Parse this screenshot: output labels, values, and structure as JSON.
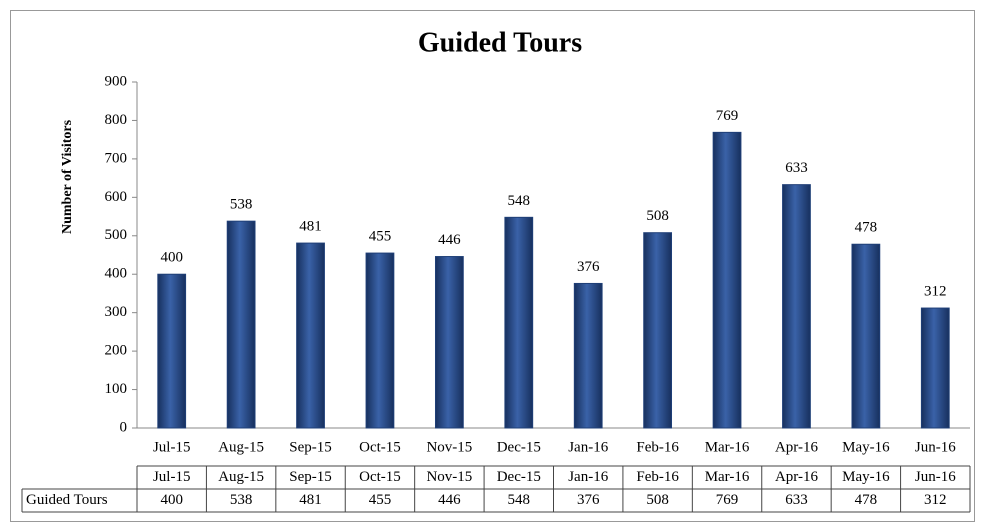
{
  "chart_data": {
    "type": "bar",
    "title": "Guided Tours",
    "y_label": "Number of Visitors",
    "series_name": "Guided Tours",
    "categories": [
      "Jul-15",
      "Aug-15",
      "Sep-15",
      "Oct-15",
      "Nov-15",
      "Dec-15",
      "Jan-16",
      "Feb-16",
      "Mar-16",
      "Apr-16",
      "May-16",
      "Jun-16"
    ],
    "values": [
      400,
      538,
      481,
      455,
      446,
      548,
      376,
      508,
      769,
      633,
      478,
      312
    ],
    "color": "#1f3f77",
    "ylim": [
      0,
      900
    ],
    "yticks": [
      0,
      100,
      200,
      300,
      400,
      500,
      600,
      700,
      800,
      900
    ],
    "grid": false,
    "data_table": true
  }
}
